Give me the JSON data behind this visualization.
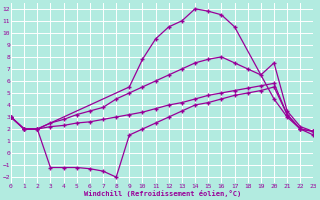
{
  "bg_color": "#b2ebe0",
  "grid_color": "#c8e8e0",
  "line_color": "#990099",
  "xlabel": "Windchill (Refroidissement éolien,°C)",
  "xlim": [
    0,
    23
  ],
  "ylim": [
    -2.5,
    12.5
  ],
  "xticks": [
    0,
    1,
    2,
    3,
    4,
    5,
    6,
    7,
    8,
    9,
    10,
    11,
    12,
    13,
    14,
    15,
    16,
    17,
    18,
    19,
    20,
    21,
    22,
    23
  ],
  "yticks": [
    -2,
    -1,
    0,
    1,
    2,
    3,
    4,
    5,
    6,
    7,
    8,
    9,
    10,
    11,
    12
  ],
  "line_A_x": [
    0,
    1,
    2,
    9,
    10,
    11,
    12,
    13,
    14,
    15,
    16,
    17,
    20,
    21,
    22,
    23
  ],
  "line_A_y": [
    3.0,
    2.0,
    2.0,
    5.5,
    7.8,
    9.5,
    10.5,
    11.0,
    12.0,
    11.8,
    11.5,
    10.5,
    4.5,
    3.0,
    2.0,
    1.5
  ],
  "line_B_x": [
    0,
    1,
    2,
    3,
    4,
    5,
    6,
    7,
    8,
    9,
    10,
    11,
    12,
    13,
    14,
    15,
    16,
    17,
    18,
    19,
    20,
    21,
    22,
    23
  ],
  "line_B_y": [
    3.0,
    2.0,
    2.0,
    2.5,
    2.8,
    3.2,
    3.5,
    3.8,
    4.5,
    5.0,
    5.5,
    6.0,
    6.5,
    7.0,
    7.5,
    7.8,
    8.0,
    7.5,
    7.0,
    6.5,
    7.5,
    3.5,
    2.2,
    1.8
  ],
  "line_C_x": [
    0,
    1,
    2,
    3,
    4,
    5,
    6,
    7,
    8,
    9,
    10,
    11,
    12,
    13,
    14,
    15,
    16,
    17,
    18,
    19,
    20,
    21,
    22,
    23
  ],
  "line_C_y": [
    3.0,
    2.0,
    2.0,
    2.2,
    2.3,
    2.5,
    2.6,
    2.8,
    3.0,
    3.2,
    3.4,
    3.7,
    4.0,
    4.2,
    4.5,
    4.8,
    5.0,
    5.2,
    5.4,
    5.6,
    5.8,
    3.2,
    2.0,
    1.8
  ],
  "line_D_x": [
    0,
    1,
    2,
    3,
    4,
    5,
    6,
    7,
    8,
    9,
    10,
    11,
    12,
    13,
    14,
    15,
    16,
    17,
    18,
    19,
    20,
    21,
    22,
    23
  ],
  "line_D_y": [
    3.0,
    2.0,
    2.0,
    -1.2,
    -1.2,
    -1.2,
    -1.3,
    -1.5,
    -2.0,
    1.5,
    2.0,
    2.5,
    3.0,
    3.5,
    4.0,
    4.2,
    4.5,
    4.8,
    5.0,
    5.2,
    5.5,
    3.2,
    2.0,
    1.8
  ]
}
